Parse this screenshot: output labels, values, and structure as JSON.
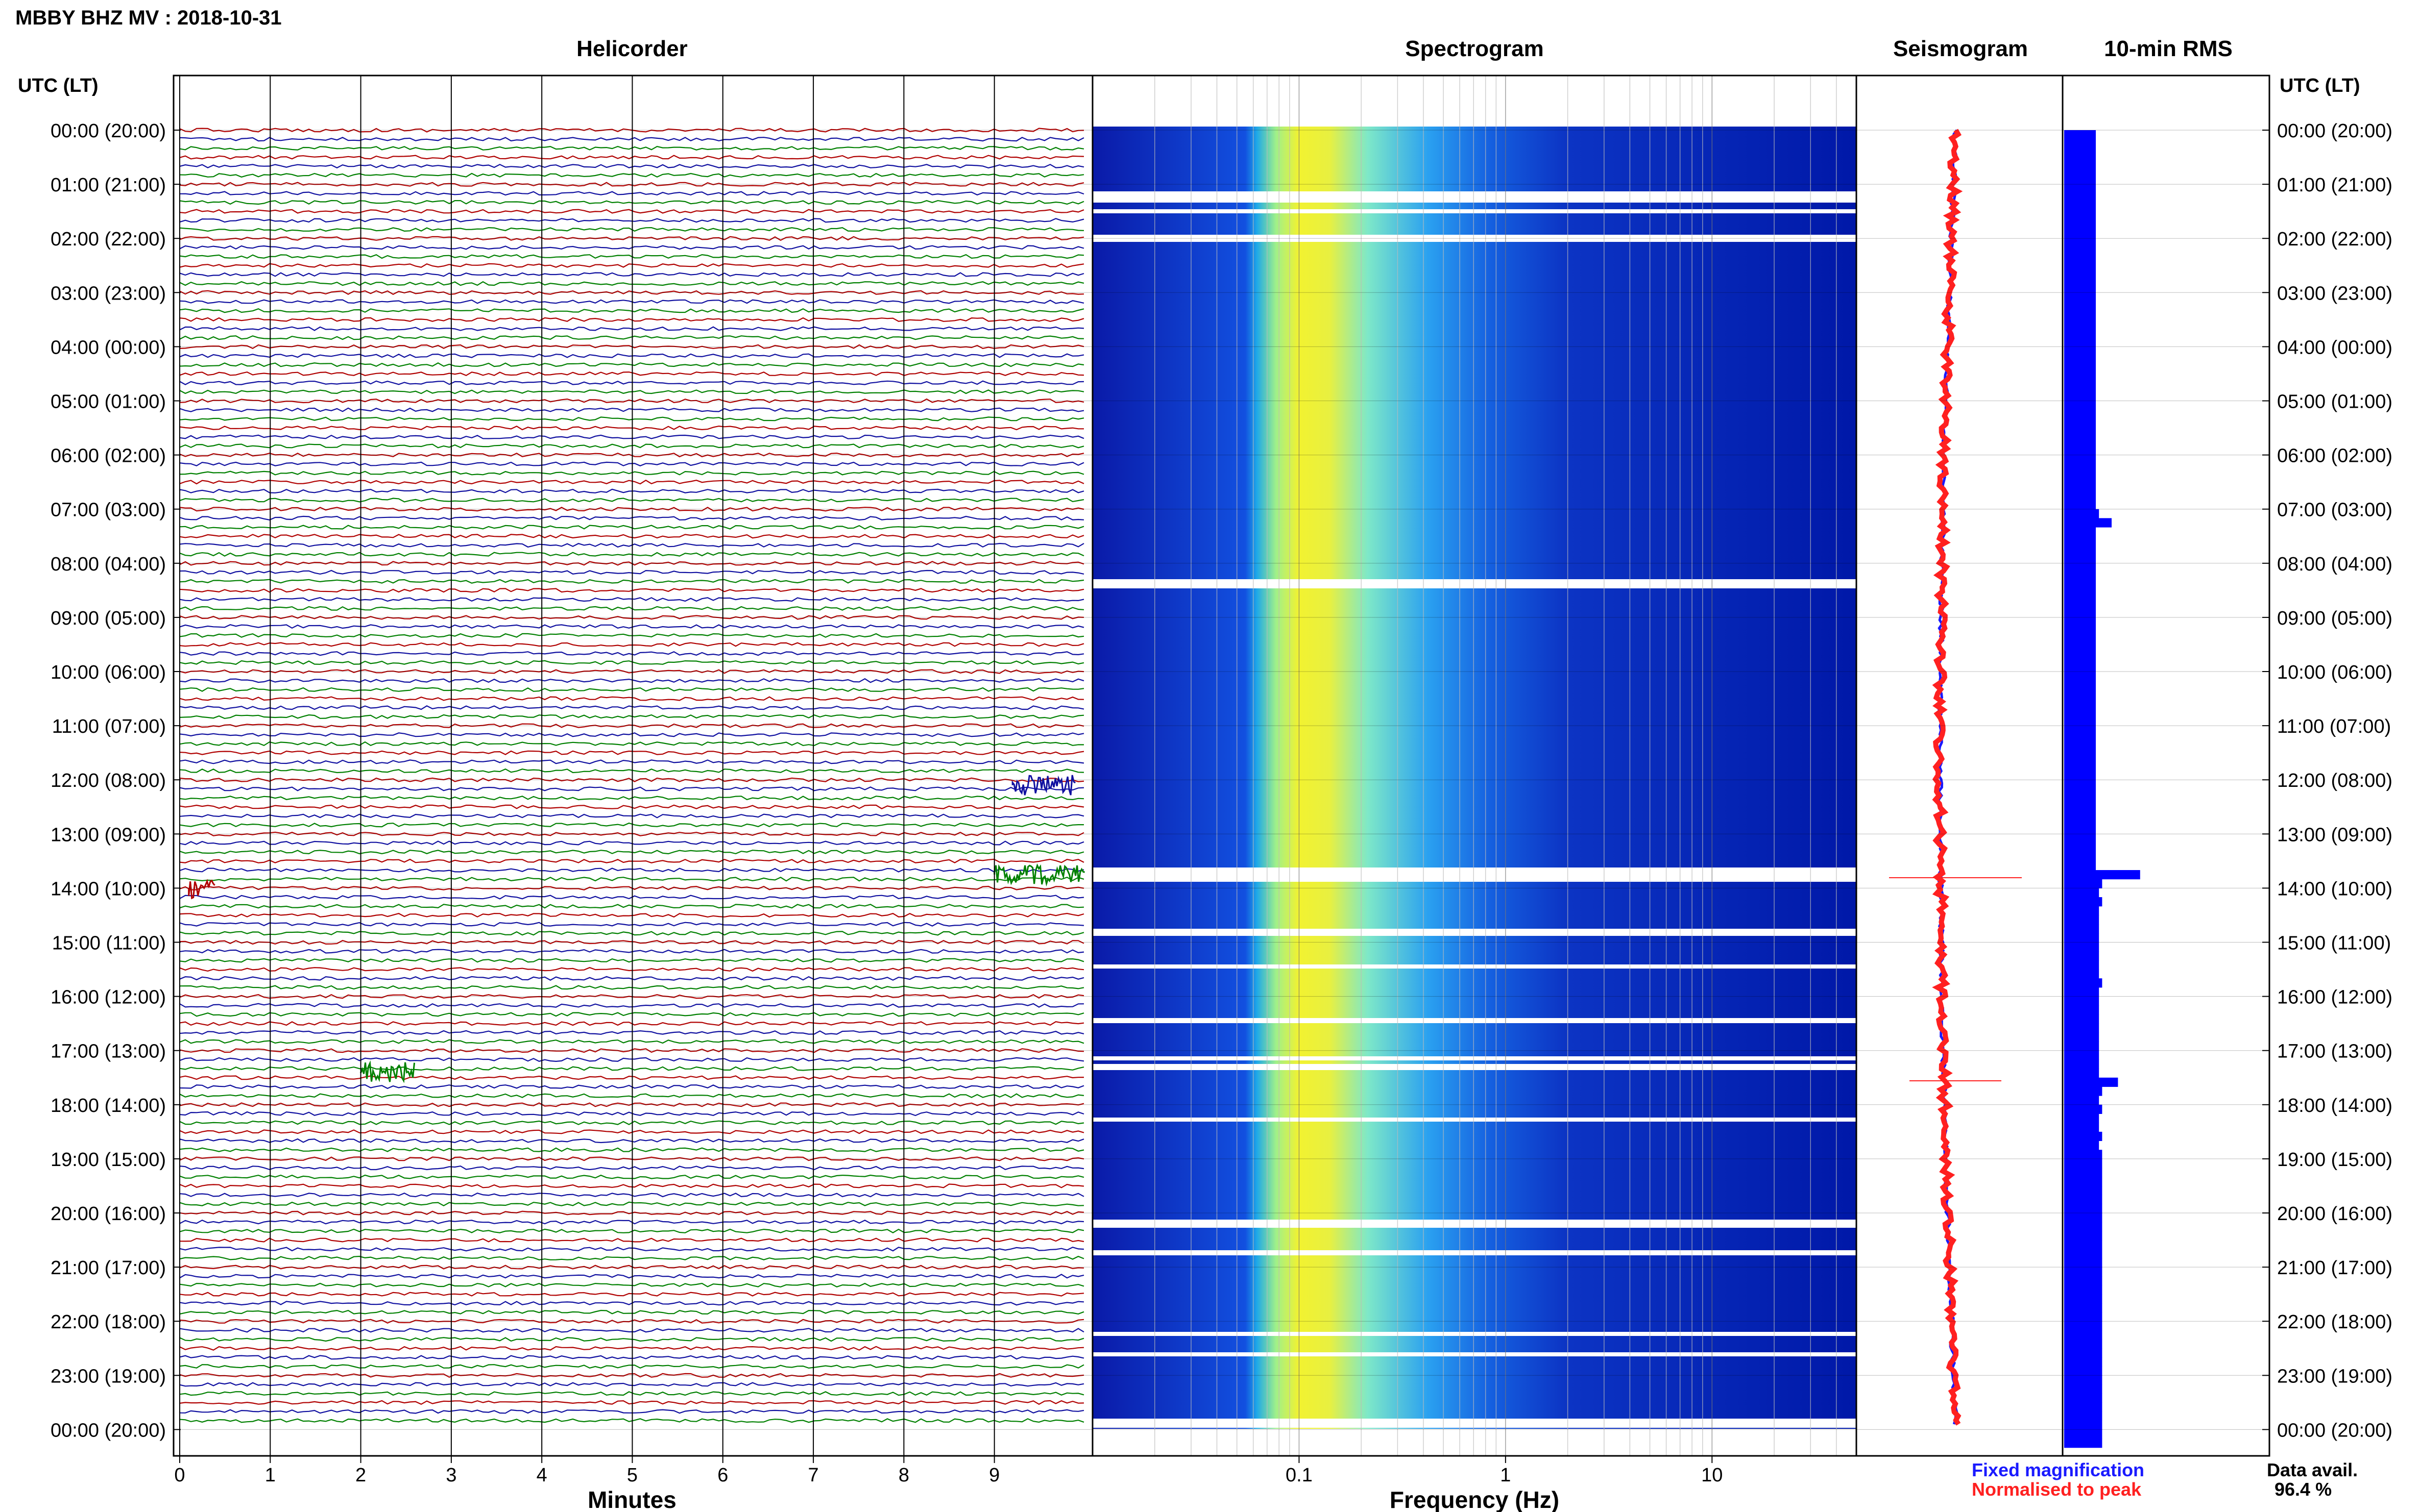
{
  "header": {
    "title": "MBBY BHZ MV : 2018-10-31"
  },
  "panels": {
    "helicorder": "Helicorder",
    "spectrogram": "Spectrogram",
    "seismogram": "Seismogram",
    "rms": "10-min RMS"
  },
  "axis": {
    "time_header_left": "UTC (LT)",
    "time_header_right": "UTC (LT)",
    "helicorder_xlabel": "Minutes",
    "spectrogram_xlabel": "Frequency (Hz)",
    "spectrogram_scale": "log"
  },
  "legend": {
    "fixed": "Fixed magnification",
    "fixed_color": "#1a1aff",
    "normalised": "Normalised to peak",
    "normalised_color": "#ff2020"
  },
  "data_availability": {
    "label": "Data avail.",
    "value": "96.4 %"
  },
  "chart_data": [
    {
      "type": "line",
      "panel": "Helicorder",
      "xlabel": "Minutes",
      "x_ticks": [
        "0",
        "1",
        "2",
        "3",
        "4",
        "5",
        "6",
        "7",
        "8",
        "9"
      ],
      "xlim": [
        0,
        10
      ],
      "y_ticks": [
        "00:00 (20:00)",
        "01:00 (21:00)",
        "02:00 (22:00)",
        "03:00 (23:00)",
        "04:00 (00:00)",
        "05:00 (01:00)",
        "06:00 (02:00)",
        "07:00 (03:00)",
        "08:00 (04:00)",
        "09:00 (05:00)",
        "10:00 (06:00)",
        "11:00 (07:00)",
        "12:00 (08:00)",
        "13:00 (09:00)",
        "14:00 (10:00)",
        "15:00 (11:00)",
        "16:00 (12:00)",
        "17:00 (13:00)",
        "18:00 (14:00)",
        "19:00 (15:00)",
        "20:00 (16:00)",
        "21:00 (17:00)",
        "22:00 (18:00)",
        "23:00 (19:00)",
        "00:00 (20:00)"
      ],
      "trace_colors": [
        "#b00000",
        "#1010a0",
        "#008000"
      ],
      "traces_per_hour": 6,
      "events": [
        {
          "hour": 13.75,
          "minute_start": 9.0,
          "minute_end": 10.0
        },
        {
          "hour": 14.0,
          "minute_start": 0.1,
          "minute_end": 0.4
        },
        {
          "hour": 12.1,
          "minute_start": 9.2,
          "minute_end": 9.9
        },
        {
          "hour": 17.4,
          "minute_start": 2.0,
          "minute_end": 2.6
        }
      ]
    },
    {
      "type": "heatmap",
      "panel": "Spectrogram",
      "xlabel": "Frequency (Hz)",
      "x_scale": "log",
      "x_ticks": [
        "0.1",
        "1",
        "10"
      ],
      "xlim": [
        0.01,
        50
      ],
      "peak_frequency_hz": 0.2,
      "colormap": [
        "#00008b",
        "#0030ff",
        "#00c8ff",
        "#80ffb0",
        "#ffff00"
      ]
    },
    {
      "type": "line",
      "panel": "Seismogram",
      "series": [
        {
          "name": "Fixed magnification",
          "color": "#1a1aff"
        },
        {
          "name": "Normalised to peak",
          "color": "#ff2020"
        }
      ]
    },
    {
      "type": "bar",
      "panel": "10-min RMS",
      "orientation": "horizontal",
      "bins_per_hour": 6,
      "color": "#0000ff",
      "values": [
        1.0,
        1.0,
        1.0,
        1.0,
        1.0,
        1.0,
        1.0,
        1.0,
        1.0,
        1.0,
        1.0,
        1.0,
        1.0,
        1.0,
        1.0,
        1.0,
        1.0,
        1.0,
        1.0,
        1.0,
        1.0,
        1.0,
        1.0,
        1.0,
        1.0,
        1.0,
        1.0,
        1.0,
        1.0,
        1.0,
        1.0,
        1.0,
        1.0,
        1.0,
        1.0,
        1.0,
        1.0,
        1.0,
        1.0,
        1.0,
        1.0,
        1.0,
        1.1,
        1.5,
        1.0,
        1.0,
        1.0,
        1.0,
        1.0,
        1.0,
        1.0,
        1.0,
        1.0,
        1.0,
        1.0,
        1.0,
        1.0,
        1.0,
        1.0,
        1.0,
        1.0,
        1.0,
        1.0,
        1.0,
        1.0,
        1.0,
        1.0,
        1.0,
        1.0,
        1.0,
        1.0,
        1.0,
        1.0,
        1.0,
        1.0,
        1.0,
        1.0,
        1.0,
        1.0,
        1.0,
        1.0,
        1.0,
        2.4,
        1.2,
        1.1,
        1.2,
        1.1,
        1.1,
        1.1,
        1.1,
        1.1,
        1.1,
        1.1,
        1.1,
        1.2,
        1.1,
        1.1,
        1.1,
        1.1,
        1.1,
        1.1,
        1.1,
        1.1,
        1.1,
        1.1,
        1.7,
        1.2,
        1.1,
        1.2,
        1.1,
        1.1,
        1.2,
        1.1,
        1.2,
        1.2,
        1.2,
        1.2,
        1.2,
        1.2,
        1.2,
        1.2,
        1.2,
        1.2,
        1.2,
        1.2,
        1.2,
        1.2,
        1.2,
        1.2,
        1.2,
        1.2,
        1.2,
        1.2,
        1.2,
        1.2,
        1.2,
        1.2,
        1.2,
        1.2,
        1.2,
        1.2,
        1.2,
        1.2,
        1.2,
        1.2,
        1.2
      ]
    }
  ]
}
